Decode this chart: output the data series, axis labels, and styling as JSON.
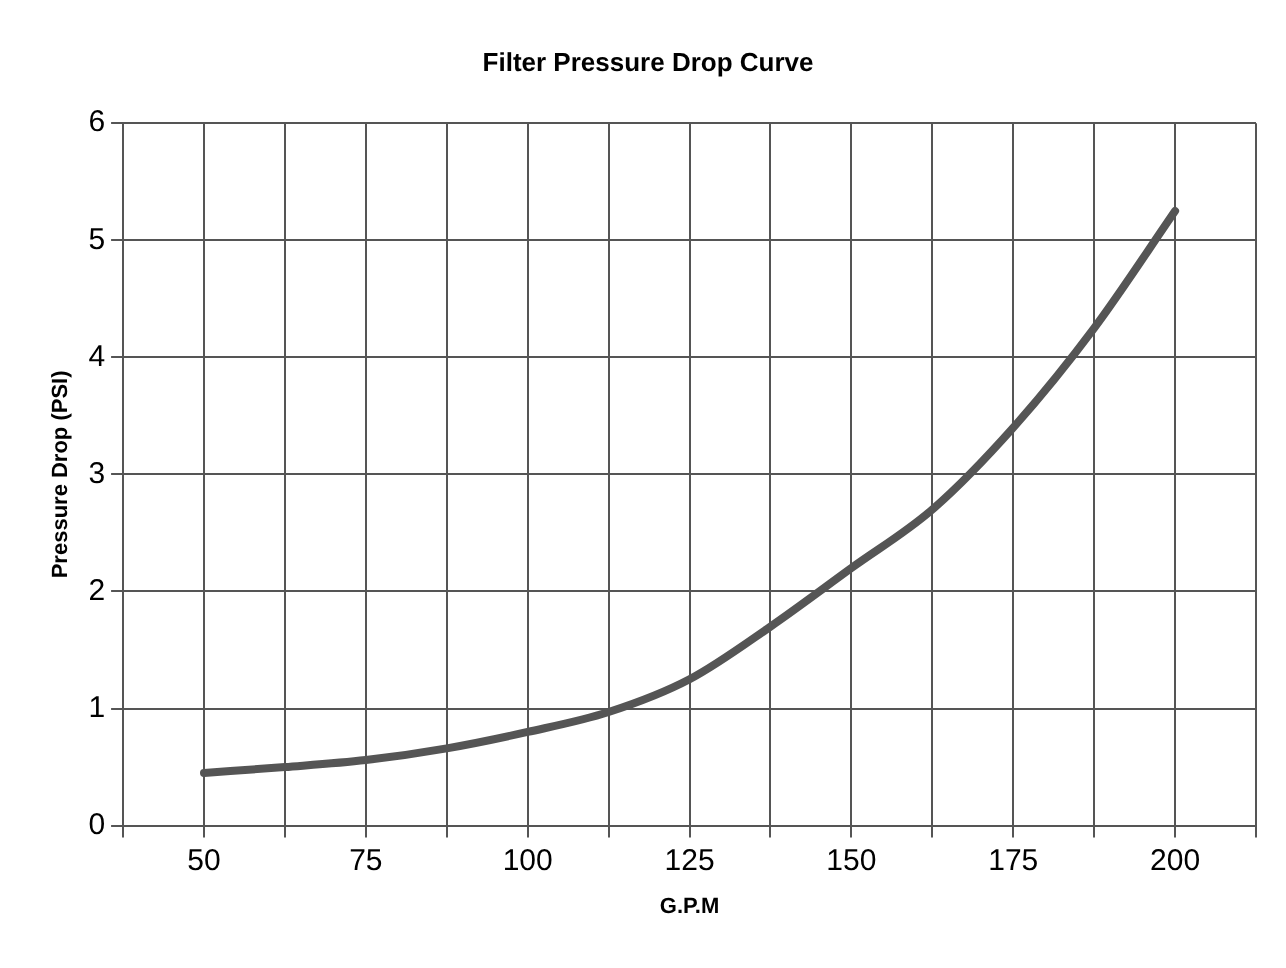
{
  "chart_data": {
    "type": "line",
    "title": "Filter Pressure Drop Curve",
    "xlabel": "G.P.M",
    "ylabel": "Pressure Drop (PSI)",
    "x": [
      50,
      62.5,
      75,
      87.5,
      100,
      112.5,
      125,
      137.5,
      150,
      162.5,
      175,
      187.5,
      200
    ],
    "series": [
      {
        "color": "#555555",
        "values": [
          0.45,
          0.5,
          0.56,
          0.66,
          0.8,
          0.97,
          1.25,
          1.7,
          2.2,
          2.7,
          3.4,
          4.25,
          5.25
        ]
      }
    ],
    "xlim": [
      37.5,
      212.5
    ],
    "xticks": [
      {
        "value": 37.5,
        "label": null
      },
      50,
      {
        "value": 62.5,
        "label": null
      },
      75,
      {
        "value": 87.5,
        "label": null
      },
      100,
      {
        "value": 112.5,
        "label": null
      },
      125,
      {
        "value": 137.5,
        "label": null
      },
      150,
      {
        "value": 162.5,
        "label": null
      },
      175,
      {
        "value": 187.5,
        "label": null
      },
      200,
      {
        "value": 212.5,
        "label": null
      }
    ],
    "ylim": [
      0,
      6
    ],
    "yticks": [
      0,
      1,
      2,
      3,
      4,
      5,
      6
    ],
    "grid": true,
    "legend": false,
    "marker": "none",
    "line_style": "solid"
  }
}
